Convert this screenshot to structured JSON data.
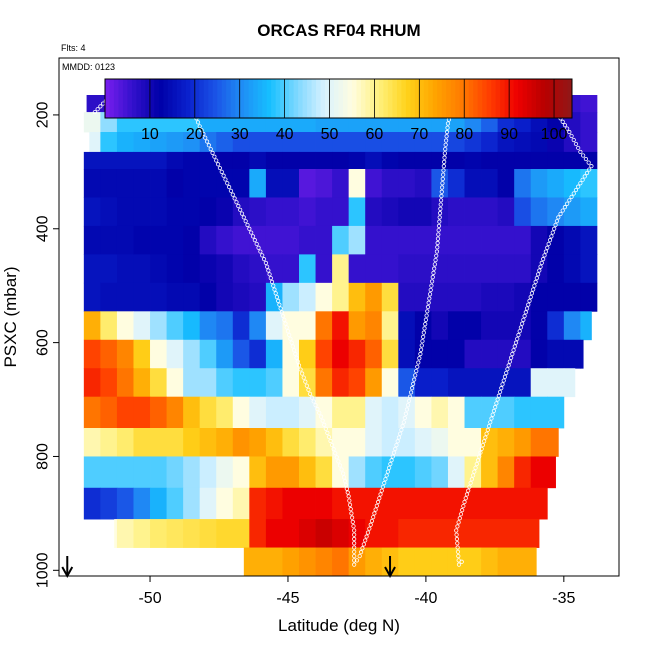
{
  "chart_data": {
    "type": "heatmap",
    "title": "ORCAS RF04 RHUM",
    "annotations": [
      "Flts: 4",
      "MMDD: 0123"
    ],
    "xlabel": "Latitude (deg N)",
    "ylabel": "PSXC (mbar)",
    "xlim": [
      -53.3,
      -33.0
    ],
    "ylim": [
      1010,
      100
    ],
    "x_ticks": [
      -50,
      -45,
      -40,
      -35
    ],
    "x_tick_labels": [
      "-50",
      "-45",
      "-40",
      "-35"
    ],
    "y_ticks": [
      200,
      400,
      600,
      800,
      1000
    ],
    "y_tick_labels": [
      "200",
      "400",
      "600",
      "800",
      "1000"
    ],
    "colorbar": {
      "position": "top, inside plot",
      "range": [
        0,
        104
      ],
      "ticks": [
        10,
        20,
        30,
        40,
        50,
        60,
        70,
        80,
        90,
        100
      ],
      "tick_labels": [
        "10",
        "20",
        "30",
        "40",
        "50",
        "60",
        "70",
        "80",
        "90",
        "100"
      ],
      "colors": [
        "#7a1ef0",
        "#3311cc",
        "#0000a8",
        "#0a20cc",
        "#1a52e6",
        "#1f8ef5",
        "#16c0ff",
        "#7fd8ff",
        "#d9f2ff",
        "#fffde0",
        "#fff07a",
        "#ffd21a",
        "#ffa500",
        "#ff7a00",
        "#ff3d00",
        "#ee0000",
        "#b80000",
        "#901818"
      ]
    },
    "x": [
      -52.1,
      -51.5,
      -50.9,
      -50.3,
      -49.7,
      -49.1,
      -48.5,
      -47.9,
      -47.3,
      -46.7,
      -46.1,
      -45.5,
      -44.9,
      -44.3,
      -43.7,
      -43.1,
      -42.5,
      -41.9,
      -41.3,
      -40.7,
      -40.1,
      -39.5,
      -38.9,
      -38.3,
      -37.7,
      -37.1,
      -36.5,
      -35.9,
      -35.3,
      -34.7,
      -34.1
    ],
    "bins": [
      {
        "p": [
          165,
          195
        ],
        "xlim": [
          -52.3,
          -33.5
        ],
        "values": [
          7,
          7,
          15,
          16,
          15,
          15,
          16,
          15,
          16,
          17,
          16,
          16,
          16,
          16,
          16,
          16,
          16,
          16,
          16,
          16,
          16,
          16,
          17,
          17,
          16,
          14,
          12,
          10,
          8,
          6,
          5
        ]
      },
      {
        "p": [
          195,
          230
        ],
        "xlim": [
          -52.4,
          -33.6
        ],
        "values": [
          52,
          44,
          38,
          38,
          38,
          38,
          38,
          34,
          34,
          34,
          34,
          34,
          34,
          34,
          33,
          33,
          33,
          33,
          33,
          33,
          33,
          33,
          33,
          30,
          26,
          20,
          18,
          15,
          12,
          8,
          6
        ]
      },
      {
        "p": [
          230,
          265
        ],
        "xlim": [
          -52.2,
          -33.6
        ],
        "values": [
          50,
          38,
          35,
          34,
          33,
          32,
          31,
          28,
          26,
          24,
          24,
          24,
          24,
          24,
          24,
          24,
          24,
          24,
          24,
          24,
          24,
          24,
          23,
          21,
          19,
          16,
          15,
          14,
          11,
          8,
          6
        ]
      },
      {
        "p": [
          265,
          295
        ],
        "xlim": [
          -52.9,
          -33.5
        ],
        "values": [
          16,
          16,
          16,
          16,
          16,
          14,
          13,
          13,
          12,
          12,
          14,
          12,
          12,
          12,
          12,
          12,
          13,
          15,
          13,
          12,
          12,
          12,
          12,
          13,
          12,
          12,
          12,
          12,
          12,
          12,
          12
        ]
      },
      {
        "p": [
          295,
          345
        ],
        "xlim": [
          -52.8,
          -33.4
        ],
        "values": [
          14,
          14,
          14,
          14,
          14,
          12,
          13,
          13,
          13,
          13,
          34,
          15,
          15,
          3,
          4,
          6,
          55,
          5,
          7,
          7,
          8,
          25,
          20,
          15,
          15,
          12,
          28,
          32,
          34,
          36,
          38
        ]
      },
      {
        "p": [
          345,
          395
        ],
        "xlim": [
          -52.8,
          -33.4
        ],
        "values": [
          16,
          15,
          14,
          14,
          14,
          13,
          13,
          12,
          11,
          8,
          7,
          6,
          6,
          5,
          6,
          6,
          38,
          8,
          9,
          10,
          10,
          8,
          7,
          7,
          7,
          8,
          24,
          28,
          30,
          32,
          34
        ]
      },
      {
        "p": [
          395,
          445
        ],
        "xlim": [
          -53.0,
          -33.5
        ],
        "values": [
          14,
          14,
          14,
          13,
          13,
          13,
          12,
          8,
          6,
          5,
          5,
          5,
          5,
          6,
          6,
          40,
          45,
          6,
          6,
          6,
          6,
          6,
          6,
          6,
          6,
          6,
          6,
          10,
          12,
          14,
          16
        ]
      },
      {
        "p": [
          445,
          495
        ],
        "xlim": [
          -53.1,
          -33.6
        ],
        "values": [
          16,
          16,
          15,
          15,
          14,
          13,
          12,
          11,
          10,
          8,
          7,
          6,
          6,
          38,
          6,
          60,
          6,
          6,
          6,
          7,
          7,
          7,
          7,
          7,
          7,
          7,
          7,
          10,
          12,
          14,
          16
        ]
      },
      {
        "p": [
          495,
          545
        ],
        "xlim": [
          -53.2,
          -33.8
        ],
        "values": [
          16,
          15,
          15,
          15,
          15,
          14,
          14,
          12,
          10,
          9,
          8,
          35,
          45,
          48,
          55,
          60,
          70,
          75,
          65,
          8,
          8,
          8,
          8,
          8,
          9,
          9,
          10,
          12,
          12,
          12,
          12
        ]
      },
      {
        "p": [
          545,
          595
        ],
        "xlim": [
          -53.2,
          -34.0
        ],
        "values": [
          72,
          62,
          55,
          50,
          45,
          40,
          36,
          30,
          28,
          20,
          30,
          50,
          55,
          55,
          80,
          90,
          75,
          78,
          60,
          15,
          12,
          10,
          12,
          12,
          10,
          10,
          10,
          12,
          20,
          30,
          35
        ]
      },
      {
        "p": [
          595,
          645
        ],
        "xlim": [
          -53.3,
          -34.3
        ],
        "values": [
          85,
          82,
          78,
          68,
          55,
          50,
          45,
          40,
          32,
          25,
          20,
          35,
          55,
          68,
          85,
          92,
          88,
          82,
          65,
          15,
          12,
          12,
          12,
          8,
          8,
          8,
          8,
          12,
          14,
          14,
          14
        ]
      },
      {
        "p": [
          645,
          695
        ],
        "xlim": [
          -53.3,
          -34.6
        ],
        "values": [
          88,
          85,
          80,
          72,
          65,
          55,
          45,
          45,
          40,
          38,
          38,
          40,
          55,
          65,
          80,
          88,
          85,
          75,
          55,
          25,
          18,
          18,
          16,
          16,
          16,
          16,
          16,
          50,
          50,
          50,
          50
        ]
      },
      {
        "p": [
          695,
          750
        ],
        "xlim": [
          -53.3,
          -35.0
        ],
        "values": [
          80,
          82,
          85,
          85,
          82,
          78,
          70,
          65,
          62,
          55,
          50,
          48,
          48,
          50,
          55,
          60,
          60,
          50,
          48,
          50,
          55,
          58,
          55,
          40,
          40,
          40,
          38,
          38,
          38,
          38,
          38
        ]
      },
      {
        "p": [
          750,
          800
        ],
        "xlim": [
          -53.1,
          -35.2
        ],
        "values": [
          58,
          60,
          62,
          65,
          65,
          65,
          68,
          70,
          72,
          76,
          74,
          70,
          65,
          62,
          58,
          55,
          55,
          50,
          48,
          48,
          50,
          52,
          55,
          55,
          70,
          72,
          75,
          80,
          80,
          80,
          80
        ]
      },
      {
        "p": [
          800,
          855
        ],
        "xlim": [
          -53.0,
          -35.3
        ],
        "values": [
          40,
          40,
          40,
          40,
          40,
          42,
          45,
          48,
          52,
          55,
          70,
          75,
          75,
          70,
          65,
          55,
          45,
          40,
          38,
          38,
          40,
          42,
          50,
          60,
          70,
          78,
          88,
          92,
          92,
          92,
          92
        ]
      },
      {
        "p": [
          855,
          910
        ],
        "xlim": [
          -53.3,
          -35.6
        ],
        "values": [
          20,
          22,
          25,
          30,
          35,
          40,
          45,
          50,
          55,
          58,
          88,
          90,
          92,
          92,
          92,
          90,
          90,
          90,
          90,
          90,
          90,
          90,
          90,
          90,
          90,
          90,
          90,
          90,
          90,
          90,
          90
        ]
      },
      {
        "p": [
          910,
          960
        ],
        "xlim": [
          -51.3,
          -35.9
        ],
        "values": [
          50,
          55,
          58,
          60,
          62,
          63,
          64,
          65,
          66,
          66,
          88,
          92,
          92,
          94,
          96,
          94,
          92,
          90,
          90,
          88,
          88,
          88,
          88,
          88,
          88,
          88,
          88,
          88,
          88,
          88,
          88
        ]
      },
      {
        "p": [
          960,
          1010
        ],
        "xlim": [
          -46.6,
          -36.0
        ],
        "values": [
          72,
          72,
          72,
          72,
          72,
          72,
          72,
          72,
          72,
          72,
          72,
          72,
          74,
          76,
          78,
          80,
          75,
          72,
          70,
          68,
          68,
          68,
          68,
          68,
          70,
          72,
          72,
          72,
          72,
          72,
          72
        ]
      }
    ],
    "flight_track": [
      [
        -52.0,
        195
      ],
      [
        -51.6,
        175
      ],
      [
        -50.5,
        175
      ],
      [
        -49.0,
        175
      ],
      [
        -48.5,
        185
      ],
      [
        -48.2,
        220
      ],
      [
        -47.8,
        260
      ],
      [
        -47.4,
        300
      ],
      [
        -47.0,
        340
      ],
      [
        -46.6,
        380
      ],
      [
        -46.2,
        420
      ],
      [
        -45.8,
        460
      ],
      [
        -45.4,
        520
      ],
      [
        -45.0,
        580
      ],
      [
        -44.6,
        640
      ],
      [
        -44.2,
        690
      ],
      [
        -43.8,
        730
      ],
      [
        -43.4,
        780
      ],
      [
        -43.0,
        830
      ],
      [
        -42.8,
        870
      ],
      [
        -42.6,
        930
      ],
      [
        -42.6,
        990
      ],
      [
        -42.4,
        975
      ],
      [
        -42.0,
        920
      ],
      [
        -41.6,
        860
      ],
      [
        -41.2,
        800
      ],
      [
        -40.8,
        740
      ],
      [
        -40.5,
        680
      ],
      [
        -40.2,
        620
      ],
      [
        -40.0,
        560
      ],
      [
        -39.8,
        500
      ],
      [
        -39.6,
        440
      ],
      [
        -39.5,
        380
      ],
      [
        -39.4,
        320
      ],
      [
        -39.3,
        260
      ],
      [
        -39.2,
        215
      ],
      [
        -39.0,
        175
      ],
      [
        -37.5,
        175
      ],
      [
        -36.2,
        175
      ],
      [
        -35.6,
        180
      ],
      [
        -35.2,
        200
      ],
      [
        -34.8,
        230
      ],
      [
        -34.4,
        265
      ],
      [
        -34.0,
        290
      ],
      [
        -34.4,
        320
      ],
      [
        -34.8,
        350
      ],
      [
        -35.2,
        380
      ],
      [
        -35.5,
        420
      ],
      [
        -35.8,
        460
      ],
      [
        -36.2,
        520
      ],
      [
        -36.6,
        580
      ],
      [
        -37.0,
        640
      ],
      [
        -37.4,
        700
      ],
      [
        -37.8,
        760
      ],
      [
        -38.2,
        820
      ],
      [
        -38.6,
        880
      ],
      [
        -38.9,
        930
      ],
      [
        -38.8,
        990
      ],
      [
        -38.6,
        980
      ]
    ],
    "arrows": [
      -53.0,
      -41.3
    ]
  }
}
